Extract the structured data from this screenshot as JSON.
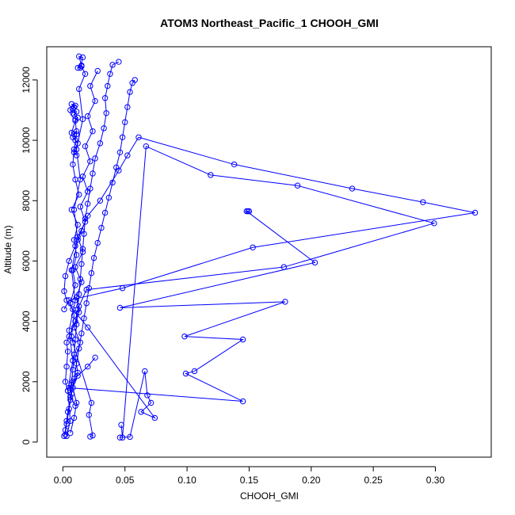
{
  "chart_data": {
    "type": "line",
    "title": "ATOM3 Northeast_Pacific_1 CHOOH_GMI",
    "xlabel": "CHOOH_GMI",
    "ylabel": "Altitude (m)",
    "xlim": [
      -0.013,
      0.345
    ],
    "ylim": [
      -500,
      13100
    ],
    "xticks": [
      0.0,
      0.05,
      0.1,
      0.15,
      0.2,
      0.25,
      0.3
    ],
    "xtick_labels": [
      "0.00",
      "0.05",
      "0.10",
      "0.15",
      "0.20",
      "0.25",
      "0.30"
    ],
    "yticks": [
      0,
      2000,
      4000,
      6000,
      8000,
      10000,
      12000
    ],
    "ytick_labels": [
      "0",
      "2000",
      "4000",
      "6000",
      "8000",
      "10000",
      "12000"
    ],
    "grid": false,
    "legend": "none",
    "color": "#0000ff",
    "marker": "open-circle",
    "series": [
      {
        "x": [
          0.046,
          0.054,
          0.066,
          0.068,
          0.071,
          0.063,
          0.074,
          0.02,
          0.008,
          0.003,
          0.001,
          0.002,
          0.005,
          0.01,
          0.015,
          0.02,
          0.03,
          0.045,
          0.052,
          0.061,
          0.138,
          0.233,
          0.29,
          0.332,
          0.153,
          0.048,
          0.005,
          0.001
        ],
        "y": [
          150,
          170,
          2350,
          1550,
          1300,
          1000,
          800,
          3800,
          4400,
          4700,
          5000,
          5500,
          6000,
          6500,
          7000,
          7500,
          8000,
          9000,
          9500,
          10100,
          9200,
          8400,
          7950,
          7600,
          6450,
          5100,
          4700,
          4400
        ]
      },
      {
        "x": [
          0.047,
          0.048,
          0.067,
          0.119,
          0.189,
          0.299,
          0.178,
          0.019,
          0.013,
          0.01,
          0.005,
          0.003,
          0.004,
          0.003,
          0.002,
          0.004,
          0.006,
          0.01
        ],
        "y": [
          570,
          150,
          9800,
          8850,
          8500,
          7250,
          5800,
          5050,
          4500,
          4000,
          3500,
          3300,
          3000,
          2500,
          2000,
          1700,
          1500,
          1200
        ]
      },
      {
        "x": [
          0.15,
          0.149,
          0.148,
          0.203,
          0.046,
          0.179,
          0.098,
          0.145,
          0.106,
          0.099,
          0.145,
          0.005,
          0.008,
          0.012,
          0.02,
          0.026
        ],
        "y": [
          7650,
          7650,
          7650,
          5950,
          4450,
          4650,
          3500,
          3400,
          2350,
          2270,
          1350,
          1800,
          2000,
          2200,
          2500,
          2800
        ]
      },
      {
        "x": [
          0.001,
          0.002,
          0.003,
          0.004,
          0.006,
          0.007,
          0.008,
          0.009,
          0.01,
          0.011,
          0.012,
          0.013,
          0.014,
          0.015,
          0.016,
          0.017,
          0.018,
          0.02,
          0.022,
          0.024,
          0.026,
          0.03,
          0.033,
          0.035,
          0.034,
          0.036,
          0.038,
          0.04,
          0.045
        ],
        "y": [
          200,
          400,
          700,
          1000,
          1400,
          1900,
          2400,
          2900,
          3400,
          3900,
          4400,
          4900,
          5400,
          5900,
          6400,
          6900,
          7400,
          7900,
          8400,
          8900,
          9400,
          9900,
          10400,
          10900,
          11400,
          11800,
          12200,
          12500,
          12600
        ]
      },
      {
        "x": [
          0.002,
          0.003,
          0.005,
          0.007,
          0.009,
          0.011,
          0.013,
          0.015,
          0.017,
          0.019,
          0.021,
          0.023,
          0.025,
          0.028,
          0.031,
          0.034,
          0.037,
          0.04,
          0.043,
          0.046,
          0.048,
          0.05,
          0.052,
          0.054,
          0.056,
          0.058
        ],
        "y": [
          250,
          600,
          1100,
          1600,
          2100,
          2600,
          3100,
          3600,
          4100,
          4600,
          5100,
          5600,
          6100,
          6600,
          7100,
          7600,
          8100,
          8600,
          9100,
          9600,
          10100,
          10600,
          11100,
          11600,
          11900,
          12000
        ]
      },
      {
        "x": [
          0.006,
          0.009,
          0.011,
          0.008,
          0.012,
          0.01,
          0.014,
          0.009,
          0.013,
          0.011,
          0.015,
          0.01,
          0.016,
          0.012,
          0.018,
          0.014,
          0.02,
          0.016,
          0.022,
          0.018,
          0.024,
          0.02,
          0.026,
          0.022,
          0.028
        ],
        "y": [
          300,
          800,
          1300,
          1800,
          2300,
          2800,
          3300,
          3800,
          4300,
          4800,
          5300,
          5800,
          6300,
          6800,
          7300,
          7800,
          8300,
          8800,
          9300,
          9800,
          10300,
          10800,
          11300,
          11800,
          12300
        ]
      },
      {
        "x": [
          0.003,
          0.006,
          0.004,
          0.008,
          0.005,
          0.01,
          0.007,
          0.012,
          0.009,
          0.014,
          0.011,
          0.016,
          0.013,
          0.018,
          0.015,
          0.012,
          0.014,
          0.016,
          0.013,
          0.015
        ],
        "y": [
          200,
          700,
          1700,
          2700,
          3700,
          4700,
          5700,
          6700,
          7700,
          8700,
          9700,
          10700,
          11700,
          12200,
          12450,
          12400,
          12400,
          12750,
          12780,
          12480
        ]
      },
      {
        "x": [
          0.022,
          0.024,
          0.021,
          0.023,
          0.008,
          0.007,
          0.009,
          0.006,
          0.01,
          0.008,
          0.011,
          0.009,
          0.012,
          0.007,
          0.013,
          0.01,
          0.008,
          0.009,
          0.011,
          0.01
        ],
        "y": [
          180,
          220,
          900,
          1300,
          3300,
          3500,
          4200,
          4600,
          5200,
          5700,
          6200,
          6700,
          7200,
          7700,
          8200,
          8700,
          9200,
          9700,
          10200,
          10700
        ]
      },
      {
        "x": [
          0.008,
          0.006,
          0.009,
          0.007,
          0.01,
          0.008,
          0.011,
          0.009,
          0.012,
          0.01,
          0.007,
          0.009,
          0.011,
          0.008,
          0.01,
          0.012,
          0.009,
          0.011
        ],
        "y": [
          10900,
          11000,
          11100,
          11200,
          11150,
          11050,
          10950,
          10850,
          10750,
          10650,
          10250,
          10200,
          10300,
          10100,
          10000,
          9900,
          9600,
          9500
        ]
      }
    ]
  }
}
